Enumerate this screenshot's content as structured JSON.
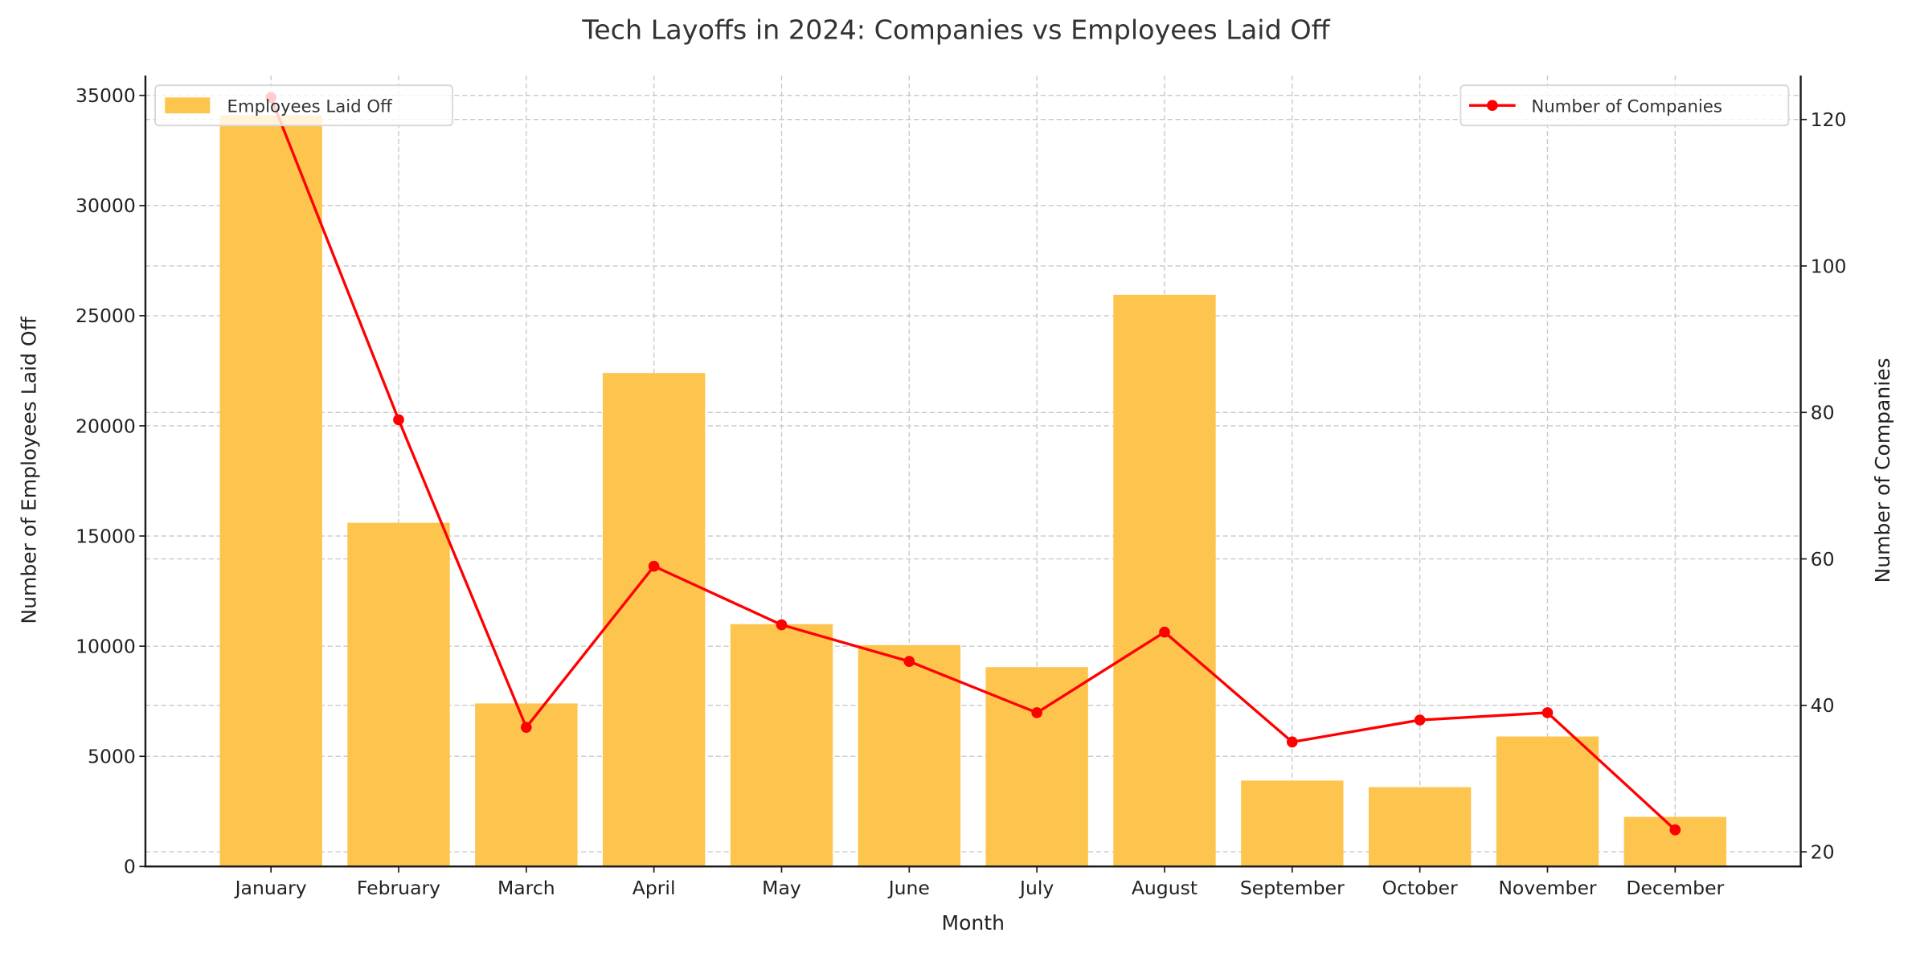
{
  "chart_data": {
    "type": "bar",
    "title": "Tech Layoffs in 2024: Companies vs Employees Laid Off",
    "xlabel": "Month",
    "ylabel": "Number of Employees Laid Off",
    "y2label": "Number of Companies",
    "categories": [
      "January",
      "February",
      "March",
      "April",
      "May",
      "June",
      "July",
      "August",
      "September",
      "October",
      "November",
      "December"
    ],
    "series": [
      {
        "name": "Employees Laid Off",
        "type": "bar",
        "axis": "left",
        "color": "#FDC54E",
        "values": [
          34100,
          15600,
          7400,
          22400,
          11000,
          10050,
          9050,
          25950,
          3900,
          3600,
          5900,
          2250
        ]
      },
      {
        "name": "Number of Companies",
        "type": "line",
        "axis": "right",
        "color": "#FF0000",
        "marker": "circle",
        "values": [
          123,
          79,
          37,
          59,
          51,
          46,
          39,
          50,
          35,
          38,
          39,
          23
        ]
      }
    ],
    "ylim": [
      0,
      35900
    ],
    "y2lim": [
      18,
      126
    ],
    "yticks": [
      0,
      5000,
      10000,
      15000,
      20000,
      25000,
      30000,
      35000
    ],
    "y2ticks": [
      20,
      40,
      60,
      80,
      100,
      120
    ],
    "grid": true,
    "legend": [
      {
        "label": "Employees Laid Off",
        "position": "upper left"
      },
      {
        "label": "Number of Companies",
        "position": "upper right"
      }
    ]
  }
}
